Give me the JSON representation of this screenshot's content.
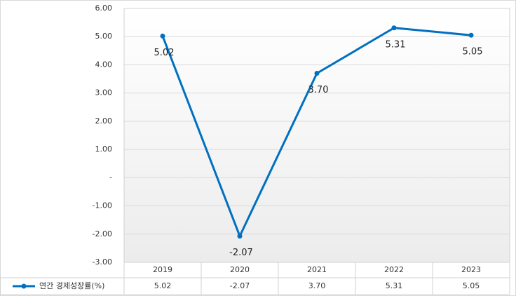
{
  "chart_data": {
    "type": "line",
    "categories": [
      "2019",
      "2020",
      "2021",
      "2022",
      "2023"
    ],
    "series": [
      {
        "name": "연간 경제성장률(%)",
        "color": "#0070c0",
        "values": [
          5.02,
          -2.07,
          3.7,
          5.31,
          5.05
        ],
        "value_labels": [
          "5.02",
          "-2.07",
          "3.70",
          "5.31",
          "5.05"
        ]
      }
    ],
    "ylim": [
      -3,
      6
    ],
    "yticks": [
      {
        "value": -3,
        "label": "-3.00"
      },
      {
        "value": -2,
        "label": "-2.00"
      },
      {
        "value": -1,
        "label": "-1.00"
      },
      {
        "value": 0,
        "label": "-"
      },
      {
        "value": 1,
        "label": "1.00"
      },
      {
        "value": 2,
        "label": "2.00"
      },
      {
        "value": 3,
        "label": "3.00"
      },
      {
        "value": 4,
        "label": "4.00"
      },
      {
        "value": 5,
        "label": "5.00"
      },
      {
        "value": 6,
        "label": "6.00"
      }
    ],
    "grid": true
  }
}
